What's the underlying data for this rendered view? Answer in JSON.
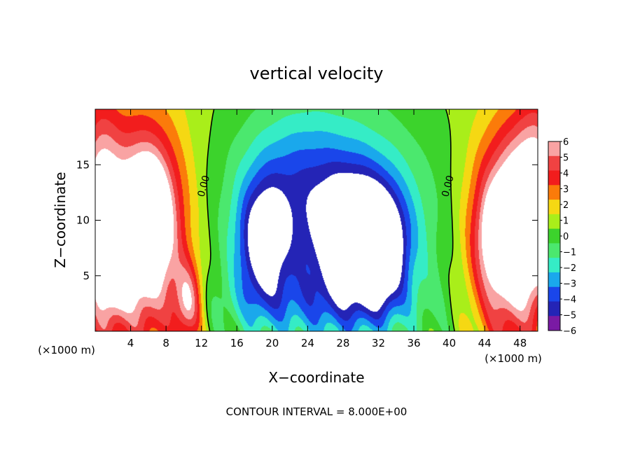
{
  "chart_data": {
    "type": "heatmap",
    "title": "vertical velocity",
    "xlabel": "X−coordinate",
    "ylabel": "Z−coordinate",
    "x_unit_left": "(×1000 m)",
    "x_unit_right": "(×1000 m)",
    "xlim": [
      0,
      50
    ],
    "ylim": [
      0,
      20
    ],
    "x_ticks": [
      4,
      8,
      12,
      16,
      20,
      24,
      28,
      32,
      36,
      40,
      44,
      48
    ],
    "y_ticks": [
      5,
      10,
      15
    ],
    "colorbar": {
      "range": [
        -6,
        6
      ],
      "labels": [
        "6",
        "5",
        "4",
        "3",
        "2",
        "1",
        "0",
        "−1",
        "−2",
        "−3",
        "−4",
        "−5",
        "−6"
      ],
      "colors": [
        "#f9a3a3",
        "#f04242",
        "#f21d1d",
        "#fb7b0a",
        "#f5d813",
        "#a9ee1a",
        "#3cd32c",
        "#4be86e",
        "#35ecc6",
        "#1aa8ec",
        "#1a46ea",
        "#2424b6",
        "#7a1aa4"
      ],
      "saturated_above": "#ffffff",
      "saturated_below": "#ffffff"
    },
    "contour_label": "0.00",
    "contour_interval_text": "CONTOUR INTERVAL = 8.000E+00",
    "features": [
      {
        "name": "left updraft",
        "x": 5.5,
        "z": 9,
        "sx": 3.2,
        "sz": 6.5,
        "w": 9
      },
      {
        "name": "left updraft core",
        "x": 6,
        "z": 10.5,
        "sx": 1.4,
        "sz": 2.8,
        "w": 6
      },
      {
        "name": "left edge updraft",
        "x": 0.5,
        "z": 10,
        "sx": 1.6,
        "sz": 7,
        "w": 6
      },
      {
        "name": "lower left updraft",
        "x": 2.5,
        "z": 4,
        "sx": 1.2,
        "sz": 2,
        "w": 2
      },
      {
        "name": "updraft near 10",
        "x": 10.5,
        "z": 2.5,
        "sx": 1.1,
        "sz": 2.5,
        "w": 5
      },
      {
        "name": "right updraft",
        "x": 46.5,
        "z": 8.5,
        "sx": 2.8,
        "sz": 6,
        "w": 9
      },
      {
        "name": "right updraft core",
        "x": 46,
        "z": 9,
        "sx": 1.3,
        "sz": 2.2,
        "w": 4
      },
      {
        "name": "right edge updraft",
        "x": 50,
        "z": 12,
        "sx": 2,
        "sz": 6,
        "w": 6
      },
      {
        "name": "central downdraft",
        "x": 26.5,
        "z": 9,
        "sx": 9,
        "sz": 9,
        "w": -4
      },
      {
        "name": "downdraft core west",
        "x": 19,
        "z": 8,
        "sx": 2,
        "sz": 3.8,
        "w": -6
      },
      {
        "name": "downdraft core east",
        "x": 30,
        "z": 8.5,
        "sx": 3.3,
        "sz": 4,
        "w": -8
      },
      {
        "name": "downdraft core east 2",
        "x": 32.5,
        "z": 7,
        "sx": 1.6,
        "sz": 3,
        "w": -4
      },
      {
        "name": "downdraft upper",
        "x": 23,
        "z": 14,
        "sx": 4,
        "sz": 4,
        "w": -2
      },
      {
        "name": "downdraft lower",
        "x": 25,
        "z": 2.5,
        "sx": 9,
        "sz": 2,
        "w": -1.5
      }
    ]
  }
}
